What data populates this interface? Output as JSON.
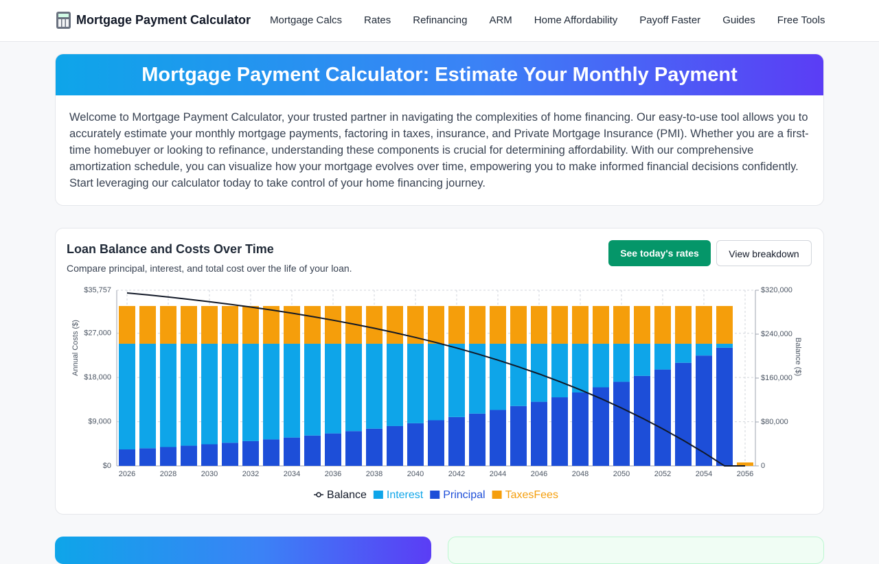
{
  "nav": {
    "brand": "Mortgage Payment Calculator",
    "links": [
      "Mortgage Calcs",
      "Rates",
      "Refinancing",
      "ARM",
      "Home Affordability",
      "Payoff Faster",
      "Guides",
      "Free Tools"
    ]
  },
  "hero": {
    "title": "Mortgage Payment Calculator: Estimate Your Monthly Payment",
    "intro": "Welcome to Mortgage Payment Calculator, your trusted partner in navigating the complexities of home financing. Our easy-to-use tool allows you to accurately estimate your monthly mortgage payments, factoring in taxes, insurance, and Private Mortgage Insurance (PMI). Whether you are a first-time homebuyer or looking to refinance, understanding these components is crucial for determining affordability. With our comprehensive amortization schedule, you can visualize how your mortgage evolves over time, empowering you to make informed financial decisions confidently. Start leveraging our calculator today to take control of your home financing journey."
  },
  "chart_card": {
    "buttons": [
      "See today's rates",
      "View breakdown"
    ]
  },
  "chart_data": {
    "type": "bar",
    "stacked": true,
    "grid": true,
    "legend": "bottom",
    "title": "Loan Balance and Costs Over Time",
    "subtitle": "Compare principal, interest, and total cost over the life of your loan.",
    "ylabel": "Annual Costs ($)",
    "y2label": "Balance ($)",
    "x": [
      2026,
      2027,
      2028,
      2029,
      2030,
      2031,
      2032,
      2033,
      2034,
      2035,
      2036,
      2037,
      2038,
      2039,
      2040,
      2041,
      2042,
      2043,
      2044,
      2045,
      2046,
      2047,
      2048,
      2049,
      2050,
      2051,
      2052,
      2053,
      2054,
      2055,
      2056
    ],
    "xlim": [
      2025.5,
      2056.5
    ],
    "xticks": [
      2026,
      2028,
      2030,
      2032,
      2034,
      2036,
      2038,
      2040,
      2042,
      2044,
      2046,
      2048,
      2050,
      2052,
      2054,
      2056
    ],
    "ylim": [
      0,
      35757
    ],
    "yticks": [
      {
        "value": 0,
        "label": "$0"
      },
      {
        "value": 9000,
        "label": "$9,000"
      },
      {
        "value": 18000,
        "label": "$18,000"
      },
      {
        "value": 27000,
        "label": "$27,000"
      },
      {
        "value": 35757,
        "label": "$35,757"
      }
    ],
    "y2lim": [
      0,
      320000
    ],
    "y2ticks": [
      {
        "value": 0,
        "label": "0"
      },
      {
        "value": 80000,
        "label": "$80,000"
      },
      {
        "value": 160000,
        "label": "$160,000"
      },
      {
        "value": 240000,
        "label": "$240,000"
      },
      {
        "value": 320000,
        "label": "$320,000"
      }
    ],
    "series": [
      {
        "name": "Balance",
        "type": "line",
        "axis": "y2",
        "color": "#111827",
        "values": [
          315000,
          311500,
          307600,
          303500,
          299100,
          294400,
          289400,
          284000,
          278200,
          272000,
          265400,
          258300,
          250700,
          242600,
          234000,
          224700,
          214700,
          204100,
          192700,
          180500,
          167500,
          153500,
          138600,
          122600,
          105500,
          87100,
          67500,
          46500,
          24100,
          0,
          0
        ]
      },
      {
        "name": "Interest",
        "type": "bar",
        "color": "#0ea5e9",
        "values": [
          21513,
          21277,
          21025,
          20755,
          20466,
          20157,
          19826,
          19472,
          19093,
          18687,
          18253,
          17788,
          17291,
          16758,
          16188,
          15578,
          14925,
          14226,
          13478,
          12678,
          11821,
          10904,
          9922,
          8872,
          7748,
          6544,
          5256,
          3878,
          2402,
          823,
          0
        ]
      },
      {
        "name": "Principal",
        "type": "bar",
        "color": "#1d4ed8",
        "values": [
          3353,
          3589,
          3841,
          4111,
          4400,
          4709,
          5040,
          5394,
          5773,
          6179,
          6613,
          7078,
          7575,
          8108,
          8678,
          9288,
          9941,
          10640,
          11388,
          12188,
          13045,
          13962,
          14944,
          15994,
          17118,
          18322,
          19610,
          20988,
          22464,
          24043,
          0
        ]
      },
      {
        "name": "TaxesFees",
        "type": "bar",
        "color": "#f59e0b",
        "values": [
          7683,
          7683,
          7683,
          7683,
          7683,
          7683,
          7683,
          7683,
          7683,
          7683,
          7683,
          7683,
          7683,
          7683,
          7683,
          7683,
          7683,
          7683,
          7683,
          7683,
          7683,
          7683,
          7683,
          7683,
          7683,
          7683,
          7683,
          7683,
          7683,
          7683,
          700
        ]
      }
    ]
  }
}
